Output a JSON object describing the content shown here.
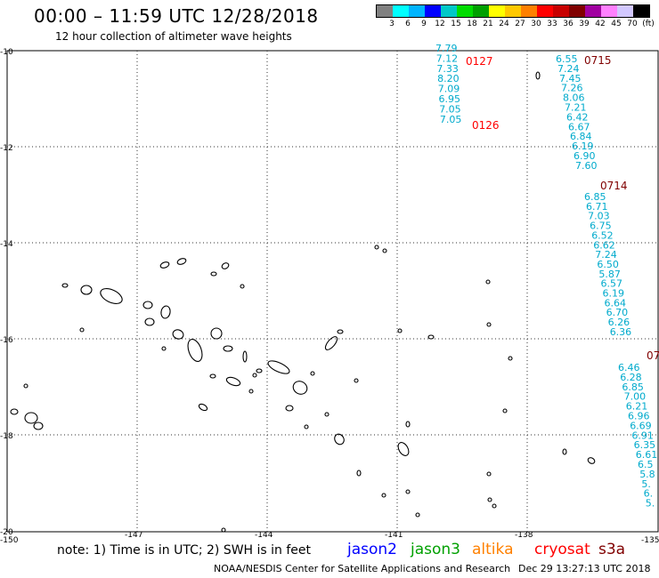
{
  "header": {
    "title": "00:00 – 11:59 UTC 12/28/2018",
    "subtitle": "12 hour collection of altimeter wave heights"
  },
  "color_scale": {
    "colors": [
      "#808080",
      "#00ffff",
      "#00b4ff",
      "#0000ff",
      "#00c8c8",
      "#00dc00",
      "#00a000",
      "#ffff00",
      "#ffc800",
      "#ff8000",
      "#ff0000",
      "#c80000",
      "#800000",
      "#a000a0",
      "#ff80ff",
      "#d2c8ff",
      "#000000"
    ],
    "labels": [
      "3",
      "6",
      "9",
      "12",
      "15",
      "18",
      "21",
      "24",
      "27",
      "30",
      "33",
      "36",
      "39",
      "42",
      "45",
      "70",
      "(ft)"
    ]
  },
  "axes": {
    "x_ticks": [
      "-150",
      "-147",
      "-144",
      "-141",
      "-138",
      "-135"
    ],
    "y_ticks": [
      "-10",
      "-12",
      "-14",
      "-16",
      "-18",
      "-20"
    ]
  },
  "passes": [
    {
      "time": "0127",
      "color": "#ff0000",
      "values": [
        "7.79",
        "7.12",
        "7.33",
        "8.20",
        "7.09",
        "6.95",
        "7.05",
        "7.05"
      ]
    },
    {
      "time": "0126",
      "color": "#ff0000",
      "values": []
    },
    {
      "time": "0715",
      "color": "#800000",
      "values": [
        "6.55",
        "7.24",
        "7.45",
        "7.26",
        "8.06",
        "7.21",
        "6.42",
        "6.67",
        "6.84",
        "6.19",
        "6.90",
        "7.60"
      ]
    },
    {
      "time": "0714",
      "color": "#800000",
      "values": [
        "6.85",
        "6.71",
        "7.03",
        "6.75",
        "6.52",
        "6.62",
        "7.24",
        "6.50",
        "5.87",
        "6.57",
        "6.19",
        "6.64",
        "6.70",
        "6.26",
        "6.36"
      ]
    },
    {
      "time": "07",
      "color": "#800000",
      "values": [
        "6.46",
        "6.28",
        "6.85",
        "7.00",
        "6.21",
        "6.96",
        "6.69",
        "6.91",
        "6.35",
        "6.61",
        "6.5",
        "5.8",
        "5.",
        "6.",
        "5."
      ]
    }
  ],
  "value_color": "#00aacc",
  "footer": {
    "note": "note: 1) Time is in UTC; 2) SWH is in feet",
    "satellites": [
      {
        "name": "jason2",
        "color": "#0000ff"
      },
      {
        "name": "jason3",
        "color": "#00a000"
      },
      {
        "name": "altika",
        "color": "#ff8000"
      },
      {
        "name": "cryosat",
        "color": "#ff0000"
      },
      {
        "name": "s3a",
        "color": "#800000"
      }
    ],
    "credit": "NOAA/NESDIS Center for Satellite Applications and Research",
    "timestamp": "Dec 29 13:27:13 UTC 2018"
  }
}
